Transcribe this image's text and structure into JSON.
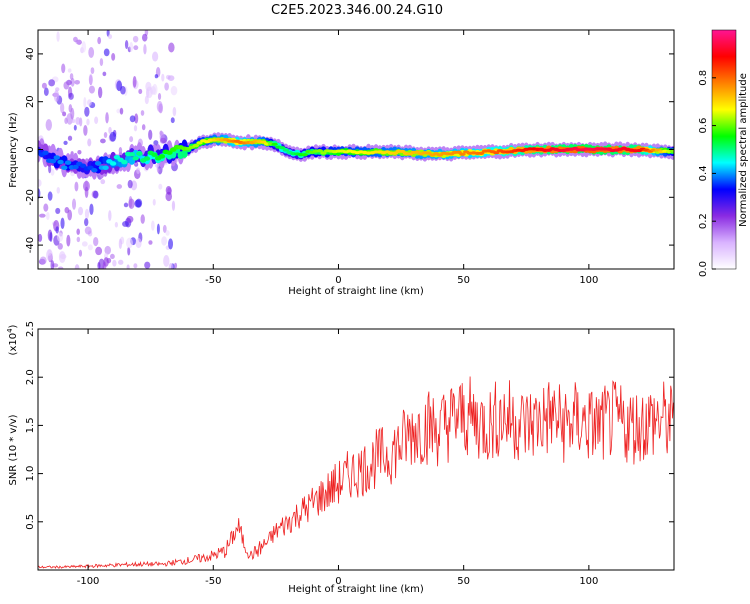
{
  "title": "C2E5.2023.346.00.24.G10",
  "chart_data": [
    {
      "type": "heatmap",
      "xlabel": "Height of straight line (km)",
      "ylabel": "Frequency (Hz)",
      "xlim": [
        -120,
        134
      ],
      "ylim": [
        -50,
        50
      ],
      "x_ticks": [
        -100,
        -50,
        0,
        50,
        100
      ],
      "y_ticks": [
        -40,
        -20,
        0,
        20,
        40
      ],
      "colorbar": {
        "label": "Normalized spectral amplitude",
        "range": [
          0.0,
          1.0
        ],
        "ticks": [
          "0.0",
          "0.2",
          "0.4",
          "0.6",
          "0.8"
        ],
        "colormap": [
          "#ffffff",
          "#d9b3ff",
          "#8a2be2",
          "#0000ff",
          "#00ffff",
          "#00ff00",
          "#ffff00",
          "#ff8000",
          "#ff0000",
          "#ff1493"
        ]
      },
      "ridge": {
        "x": [
          -120,
          -110,
          -100,
          -90,
          -80,
          -70,
          -60,
          -55,
          -50,
          -45,
          -40,
          -35,
          -30,
          -25,
          -20,
          -15,
          -10,
          0,
          20,
          40,
          60,
          80,
          100,
          120,
          134
        ],
        "y": [
          0,
          -6,
          -8,
          -5,
          -3,
          -2,
          0,
          3,
          4,
          4,
          3,
          3,
          3,
          2,
          -1,
          -2,
          -1,
          -1,
          -1,
          -2,
          -1,
          0,
          0,
          0,
          -1
        ],
        "amplitude": [
          0.35,
          0.4,
          0.35,
          0.45,
          0.5,
          0.55,
          0.6,
          0.65,
          0.7,
          0.75,
          0.8,
          0.75,
          0.7,
          0.55,
          0.5,
          0.55,
          0.6,
          0.65,
          0.7,
          0.75,
          0.8,
          0.9,
          0.95,
          0.9,
          0.6
        ]
      },
      "grid": false
    },
    {
      "type": "line",
      "xlabel": "Height of straight line (km)",
      "ylabel": "SNR (10 * v/v)",
      "y_multiplier_label": "(x10",
      "y_multiplier_exp": "4",
      "xlim": [
        -120,
        134
      ],
      "ylim": [
        0,
        2.5
      ],
      "x_ticks": [
        -100,
        -50,
        0,
        50,
        100
      ],
      "y_ticks": [
        0.5,
        1.0,
        1.5,
        2.0,
        2.5
      ],
      "series": [
        {
          "color": "#ee2222",
          "x": [
            -120,
            -110,
            -100,
            -90,
            -80,
            -70,
            -65,
            -60,
            -55,
            -50,
            -45,
            -42,
            -40,
            -38,
            -35,
            -30,
            -28,
            -25,
            -20,
            -15,
            -12,
            -10,
            -5,
            0,
            5,
            10,
            15,
            20,
            25,
            30,
            35,
            40,
            45,
            50,
            55,
            60,
            65,
            70,
            75,
            80,
            85,
            90,
            95,
            100,
            105,
            110,
            115,
            120,
            125,
            130,
            134
          ],
          "y": [
            0.03,
            0.03,
            0.04,
            0.05,
            0.06,
            0.06,
            0.08,
            0.1,
            0.12,
            0.15,
            0.2,
            0.35,
            0.45,
            0.3,
            0.15,
            0.25,
            0.3,
            0.4,
            0.5,
            0.6,
            0.65,
            0.7,
            0.8,
            0.9,
            1.0,
            1.05,
            1.15,
            1.2,
            1.3,
            1.45,
            1.5,
            1.45,
            1.55,
            1.6,
            1.55,
            1.5,
            1.6,
            1.55,
            1.5,
            1.55,
            1.6,
            1.5,
            1.55,
            1.5,
            1.5,
            1.55,
            1.5,
            1.5,
            1.55,
            1.55,
            1.5
          ]
        }
      ],
      "grid": false
    }
  ]
}
